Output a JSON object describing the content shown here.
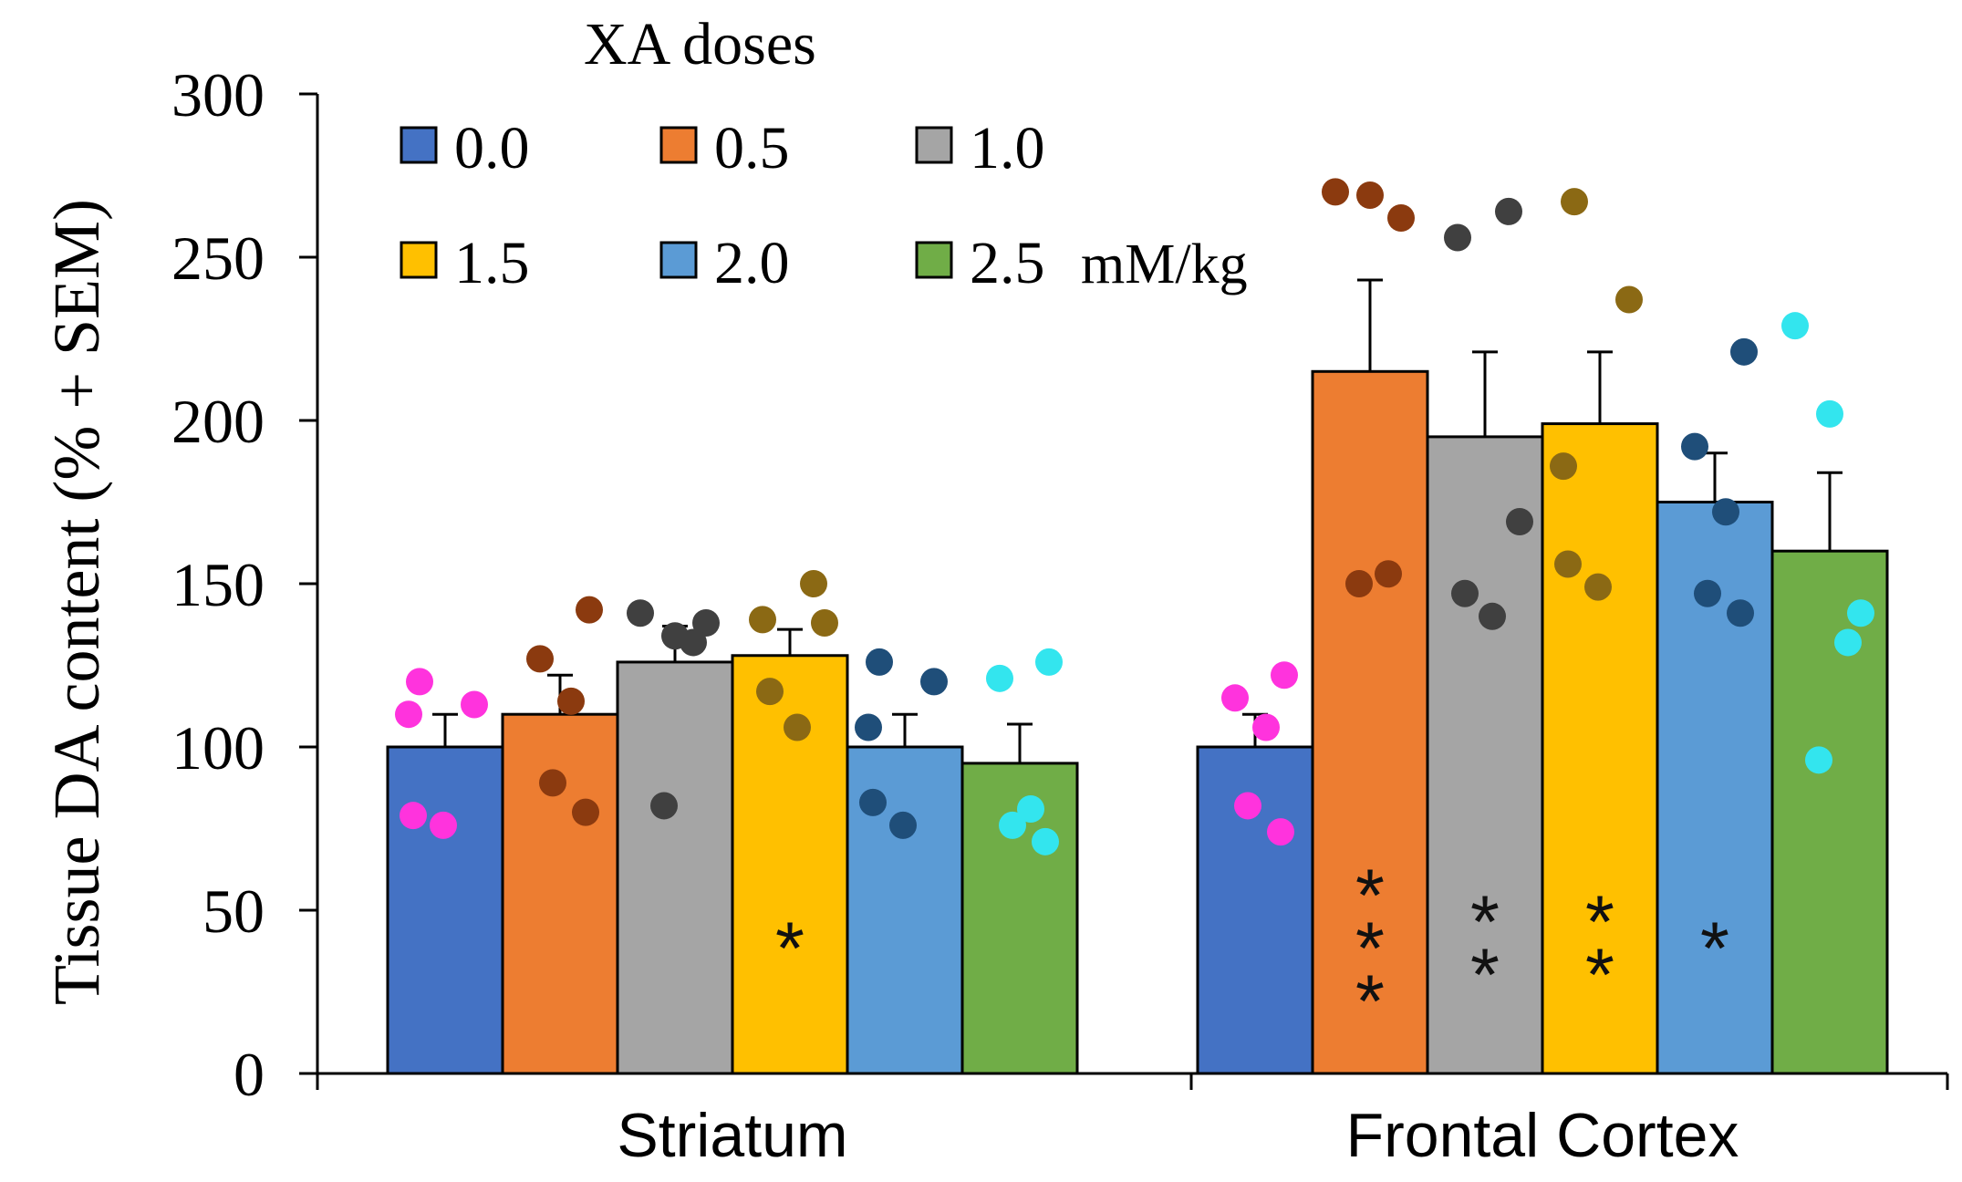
{
  "chart_data": {
    "type": "bar",
    "ylabel": "Tissue DA content  (% + SEM)",
    "ylim": [
      0,
      300
    ],
    "yticks": [
      0,
      50,
      100,
      150,
      200,
      250,
      300
    ],
    "grid": false,
    "legend": {
      "title": "XA doses",
      "placement": "top-left",
      "suffix": "mM/kg"
    },
    "categories": [
      "Striatum",
      "Frontal Cortex"
    ],
    "series": [
      {
        "name": "0.0",
        "color": "#4472C4",
        "dot_color": "#FF33DD",
        "values": [
          100,
          100
        ],
        "sem": [
          10,
          10
        ],
        "points": [
          [
            120,
            113,
            110,
            79,
            76
          ],
          [
            122,
            115,
            106,
            82,
            74
          ]
        ],
        "significance": [
          "",
          ""
        ]
      },
      {
        "name": "0.5",
        "color": "#ED7D31",
        "dot_color": "#8B3A0F",
        "values": [
          110,
          215
        ],
        "sem": [
          12,
          28
        ],
        "points": [
          [
            142,
            127,
            114,
            89,
            80
          ],
          [
            270,
            269,
            262,
            153,
            150
          ]
        ],
        "significance": [
          "",
          "***"
        ]
      },
      {
        "name": "1.0",
        "color": "#A5A5A5",
        "dot_color": "#404040",
        "values": [
          126,
          195
        ],
        "sem": [
          11,
          26
        ],
        "points": [
          [
            141,
            134,
            138,
            132,
            82
          ],
          [
            264,
            256,
            169,
            147,
            140
          ]
        ],
        "significance": [
          "",
          "**"
        ]
      },
      {
        "name": "1.5",
        "color": "#FFC000",
        "dot_color": "#8B6914",
        "values": [
          128,
          199
        ],
        "sem": [
          8,
          22
        ],
        "points": [
          [
            150,
            139,
            138,
            117,
            106
          ],
          [
            267,
            237,
            186,
            156,
            149
          ]
        ],
        "significance": [
          "*",
          "**"
        ]
      },
      {
        "name": "2.0",
        "color": "#5B9BD5",
        "dot_color": "#1F4E79",
        "values": [
          100,
          175
        ],
        "sem": [
          10,
          15
        ],
        "points": [
          [
            126,
            120,
            106,
            83,
            76
          ],
          [
            221,
            192,
            172,
            147,
            141
          ]
        ],
        "significance": [
          "",
          "*"
        ]
      },
      {
        "name": "2.5",
        "color": "#70AD47",
        "dot_color": "#33E5EE",
        "values": [
          95,
          160
        ],
        "sem": [
          12,
          24
        ],
        "points": [
          [
            126,
            121,
            81,
            76,
            71
          ],
          [
            229,
            202,
            141,
            132,
            96
          ]
        ],
        "significance": [
          "",
          ""
        ]
      }
    ]
  }
}
